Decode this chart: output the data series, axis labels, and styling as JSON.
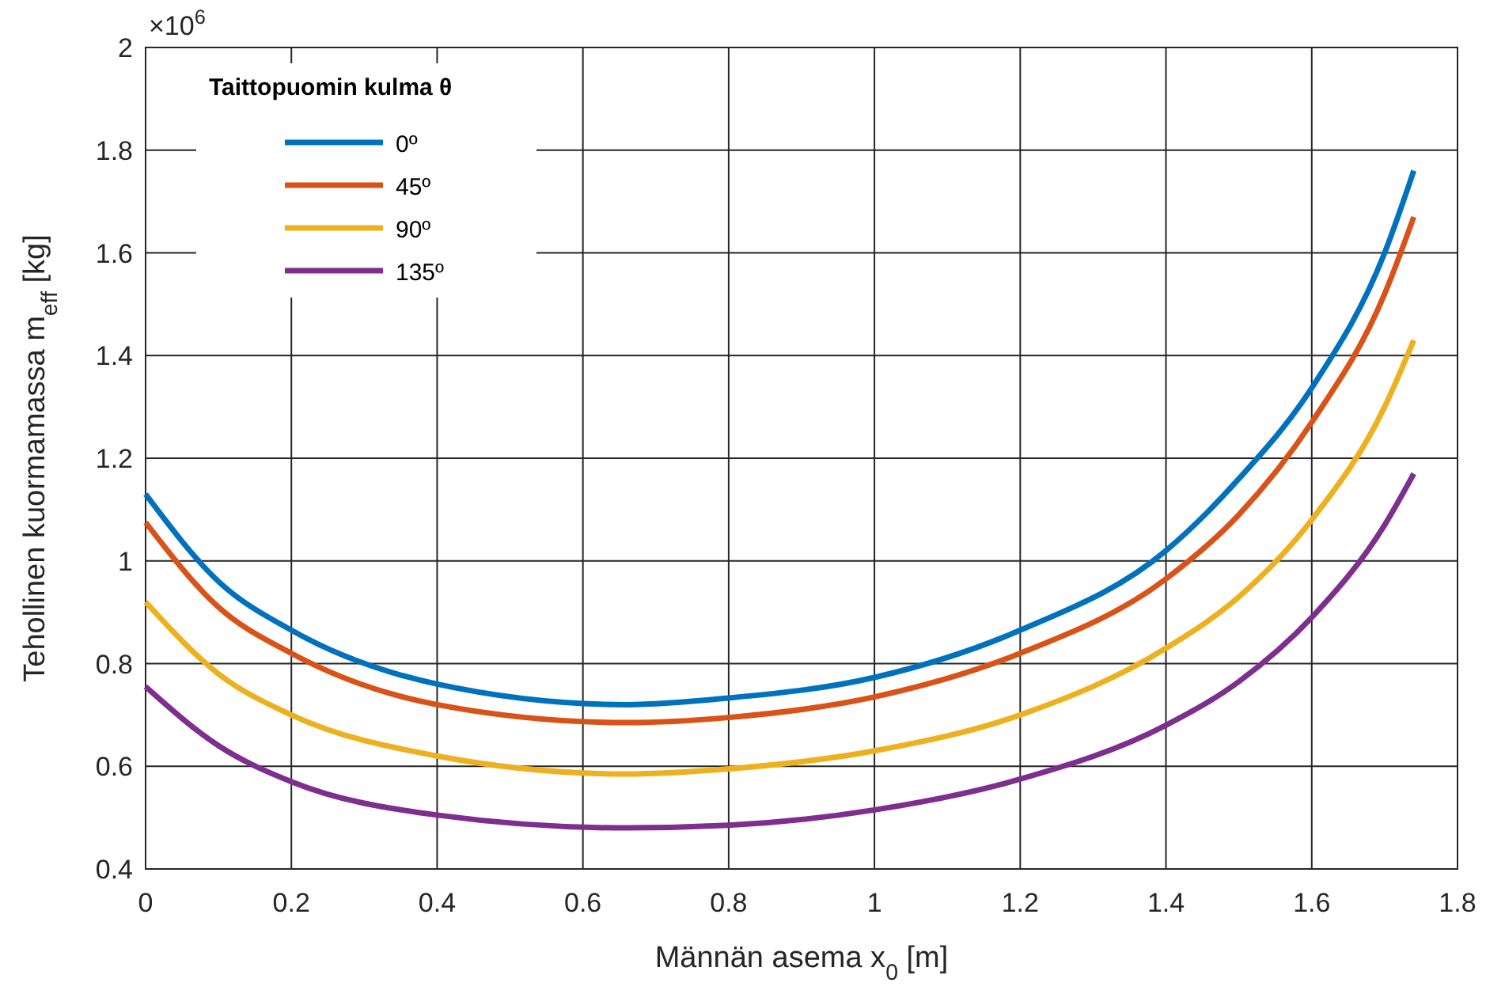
{
  "chart_data": {
    "type": "line",
    "xlabel": "Männän asema x$_{0}$ [m]",
    "ylabel": "Tehollinen kuormamassa m$_{eff}$ [kg]",
    "legend_title": "Taittopuomin kulma θ",
    "annotations": [
      "×10$^{6}$"
    ],
    "x": [
      0,
      0.1,
      0.2,
      0.4,
      0.66,
      0.8,
      1.0,
      1.2,
      1.4,
      1.5,
      1.6,
      1.7,
      1.74
    ],
    "series": [
      {
        "name": "0º",
        "color": "#0072bd",
        "values": [
          1.13,
          0.96,
          0.865,
          0.76,
          0.72,
          0.733,
          0.773,
          0.865,
          1.02,
          1.16,
          1.337,
          1.6,
          1.76
        ]
      },
      {
        "name": "45º",
        "color": "#d95319",
        "values": [
          1.075,
          0.91,
          0.82,
          0.72,
          0.685,
          0.695,
          0.735,
          0.82,
          0.965,
          1.09,
          1.27,
          1.52,
          1.67
        ]
      },
      {
        "name": "90º",
        "color": "#edb120",
        "values": [
          0.92,
          0.78,
          0.7,
          0.62,
          0.585,
          0.595,
          0.63,
          0.7,
          0.83,
          0.93,
          1.08,
          1.3,
          1.43
        ]
      },
      {
        "name": "135º",
        "color": "#7e2f8e",
        "values": [
          0.755,
          0.64,
          0.57,
          0.505,
          0.48,
          0.485,
          0.515,
          0.575,
          0.68,
          0.765,
          0.89,
          1.07,
          1.17
        ]
      }
    ],
    "xlim": [
      0,
      1.8
    ],
    "xticks": [
      0,
      0.2,
      0.4,
      0.6,
      0.8,
      1,
      1.2,
      1.4,
      1.6,
      1.8
    ],
    "ylim": [
      0.4,
      2
    ],
    "yticks": [
      0.4,
      0.6,
      0.8,
      1,
      1.2,
      1.4,
      1.6,
      1.8,
      2
    ],
    "grid": true,
    "legend": "top left",
    "marker": "none",
    "line_style": "solid"
  }
}
